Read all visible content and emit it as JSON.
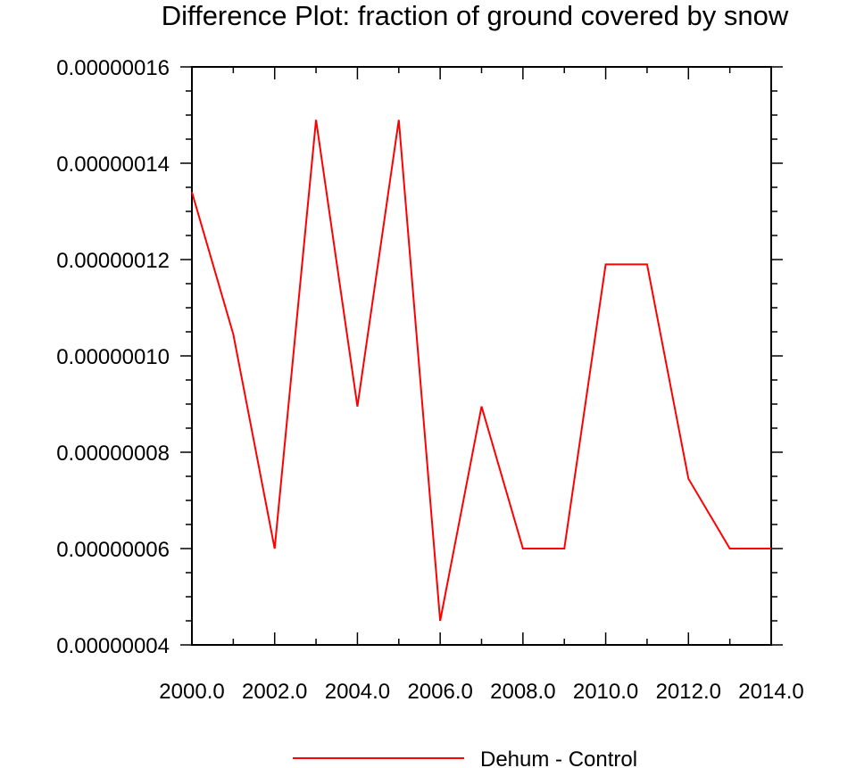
{
  "chart_data": {
    "type": "line",
    "title": "Difference Plot: fraction of ground covered by snow",
    "xlabel": "",
    "ylabel": "",
    "x": [
      2000,
      2001,
      2002,
      2003,
      2004,
      2005,
      2006,
      2007,
      2008,
      2009,
      2010,
      2011,
      2012,
      2013,
      2014
    ],
    "series": [
      {
        "name": "Dehum - Control",
        "color": "#ff0000",
        "values": [
          1.34e-07,
          1.045e-07,
          6e-08,
          1.49e-07,
          8.95e-08,
          1.49e-07,
          4.5e-08,
          8.95e-08,
          6e-08,
          6e-08,
          1.19e-07,
          1.19e-07,
          7.45e-08,
          6e-08,
          6e-08
        ]
      }
    ],
    "xlim": [
      2000,
      2014
    ],
    "ylim": [
      4e-08,
      1.6e-07
    ],
    "x_ticks": [
      2000,
      2002,
      2004,
      2006,
      2008,
      2010,
      2012,
      2014
    ],
    "x_tick_labels": [
      "2000.0",
      "2002.0",
      "2004.0",
      "2006.0",
      "2008.0",
      "2010.0",
      "2012.0",
      "2014.0"
    ],
    "y_ticks": [
      4e-08,
      6e-08,
      8e-08,
      1e-07,
      1.2e-07,
      1.4e-07,
      1.6e-07
    ],
    "y_tick_labels": [
      "0.00000004",
      "0.00000006",
      "0.00000008",
      "0.00000010",
      "0.00000012",
      "0.00000014",
      "0.00000016"
    ],
    "grid": false,
    "legend_position": "bottom-center"
  }
}
